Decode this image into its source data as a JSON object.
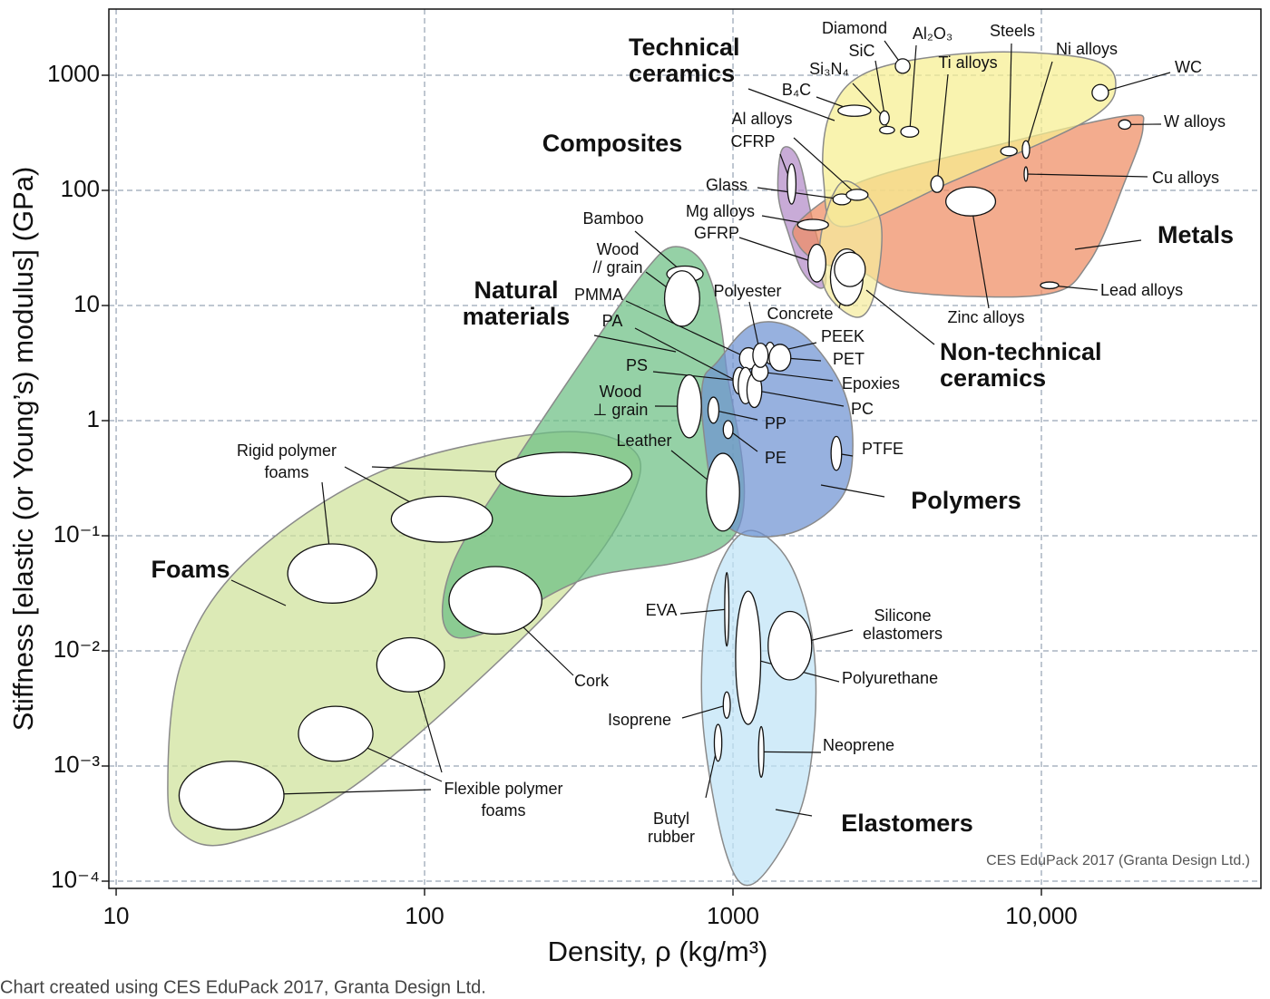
{
  "chart_data": {
    "type": "ashby",
    "x_label": "Density, ρ  (kg/m³)",
    "y_label": "Stiffness [elastic (or Young’s) modulus] (GPa)",
    "log_x": true,
    "log_y": true,
    "grid": true,
    "xlim": [
      9.47,
      51500
    ],
    "ylim": [
      8.65e-05,
      3757
    ],
    "xticks": [
      10,
      100,
      1000,
      {
        "value": 10000,
        "label": "10,000"
      }
    ],
    "yticks": [
      1000,
      100,
      10,
      1,
      {
        "value": 0.1,
        "label": "10⁻¹"
      },
      {
        "value": 0.01,
        "label": "10⁻²"
      },
      {
        "value": 0.001,
        "label": "10⁻³"
      },
      {
        "value": 0.0001,
        "label": "10⁻⁴"
      }
    ],
    "credit": "CES EduPack 2017 (Granta Design Ltd.)",
    "families": [
      {
        "name": [
          "Foams"
        ],
        "color": "#cfe29a",
        "density": [
          14.7,
          16.3,
          24.4,
          63,
          280,
          481,
          450,
          244,
          72,
          26.2,
          16.3
        ],
        "modulus": [
          0.00064,
          0.00026,
          0.00022,
          0.00076,
          0.029,
          0.25,
          0.62,
          0.78,
          0.36,
          0.059,
          0.008
        ]
      },
      {
        "name": [
          "Natural",
          "materials"
        ],
        "color": "#6cbf84",
        "density": [
          116,
          152,
          321,
          1014,
          947,
          828,
          653,
          515,
          321,
          187,
          124
        ],
        "modulus": [
          0.0166,
          0.0139,
          0.0411,
          0.102,
          3.19,
          19.5,
          32.5,
          19.5,
          3.19,
          0.362,
          0.059
        ]
      },
      {
        "name": [
          "Elastomers"
        ],
        "color": "#bfe3f7",
        "density": [
          1161,
          1521,
          1803,
          1841,
          1629,
          1161,
          947,
          800,
          816,
          947
        ],
        "modulus": [
          0.111,
          0.059,
          0.0139,
          0.00226,
          0.00037,
          9.47e-05,
          0.000179,
          0.00226,
          0.0199,
          0.0709
        ]
      },
      {
        "name": [
          "Polymers"
        ],
        "color": "#6f93d2",
        "density": [
          885,
          1161,
          1629,
          2208,
          2443,
          2285,
          1629,
          1084,
          885,
          800,
          800
        ],
        "modulus": [
          3.19,
          6.83,
          6.02,
          2.22,
          0.748,
          0.23,
          0.111,
          0.102,
          0.175,
          0.897,
          2.22
        ]
      },
      {
        "name": [
          "Composites"
        ],
        "color": "#b38bc7",
        "density": [
          1442,
          1629,
          1803,
          1995,
          1928,
          1683,
          1521,
          1402
        ],
        "modulus": [
          226,
          189,
          58,
          19.5,
          14.1,
          19.5,
          40.4,
          91.4
        ]
      },
      {
        "name": [
          "Metals"
        ],
        "color": "#ee8c62",
        "density": [
          1629,
          2620,
          7230,
          18660,
          21350,
          18660,
          14220,
          10140,
          3670,
          2620,
          1928,
          1629
        ],
        "modulus": [
          53,
          120,
          248,
          442,
          356,
          120,
          23.4,
          12.4,
          13.1,
          19.5,
          23.4,
          33.7
        ]
      },
      {
        "name": [
          "Technical",
          "ceramics"
        ],
        "color": "#f7ef90",
        "density": [
          2066,
          2799,
          6310,
          14220,
          17420,
          14220,
          5150,
          2285,
          1968
        ],
        "modulus": [
          467,
          1094,
          1574,
          1387,
          849,
          411,
          120,
          48.4,
          120
        ]
      },
      {
        "name": [
          "Non-technical",
          "ceramics"
        ],
        "color": "#f5ec9c",
        "density": [
          2285,
          2993,
          2895,
          2531,
          1995,
          1928
        ],
        "modulus": [
          120,
          58,
          13.6,
          7.9,
          13.6,
          40.4
        ]
      }
    ],
    "annotations": [
      [
        "Rigid polymer",
        "foams"
      ],
      [
        "Flexible polymer",
        "foams"
      ]
    ],
    "materials": [
      {
        "density": [
          16,
          35
        ],
        "modulus": [
          0.00028,
          0.0011
        ]
      },
      {
        "density": [
          39,
          68
        ],
        "modulus": [
          0.0011,
          0.0033
        ]
      },
      {
        "density": [
          70,
          116
        ],
        "modulus": [
          0.0044,
          0.013
        ]
      },
      {
        "density": [
          36,
          70
        ],
        "modulus": [
          0.026,
          0.085
        ]
      },
      {
        "density": [
          78,
          166
        ],
        "modulus": [
          0.088,
          0.22
        ]
      },
      {
        "density": [
          170,
          470
        ],
        "modulus": [
          0.22,
          0.53
        ]
      },
      {
        "name": [
          "Cork"
        ],
        "density": [
          120,
          240
        ],
        "modulus": [
          0.014,
          0.054
        ]
      },
      {
        "name": [
          "Bamboo"
        ],
        "density": [
          610,
          800
        ],
        "modulus": [
          16,
          22
        ]
      },
      {
        "name": [
          "Wood",
          "// grain"
        ],
        "density": [
          600,
          780
        ],
        "modulus": [
          6.6,
          20
        ]
      },
      {
        "name": [
          "Wood",
          "⊥ grain"
        ],
        "density": [
          660,
          790
        ],
        "modulus": [
          0.71,
          2.5
        ]
      },
      {
        "name": [
          "Leather"
        ],
        "density": [
          820,
          1050
        ],
        "modulus": [
          0.11,
          0.52
        ]
      },
      {
        "name": [
          "PTFE"
        ],
        "density": [
          2080,
          2250
        ],
        "modulus": [
          0.37,
          0.73
        ]
      },
      {
        "name": [
          "PP"
        ],
        "density": [
          830,
          900
        ],
        "modulus": [
          0.95,
          1.6
        ]
      },
      {
        "name": [
          "PE"
        ],
        "density": [
          930,
          1000
        ],
        "modulus": [
          0.7,
          1.0
        ]
      },
      {
        "name": [
          "PS"
        ],
        "density": [
          1000,
          1100
        ],
        "modulus": [
          1.7,
          2.9
        ]
      },
      {
        "name": [
          "PMMA"
        ],
        "density": [
          1050,
          1200
        ],
        "modulus": [
          2.8,
          4.3
        ]
      },
      {
        "name": [
          "PA"
        ],
        "density": [
          1040,
          1160
        ],
        "modulus": [
          1.4,
          2.9
        ]
      },
      {
        "name": [
          "PC"
        ],
        "density": [
          1110,
          1240
        ],
        "modulus": [
          1.3,
          2.6
        ]
      },
      {
        "name": [
          "Epoxies"
        ],
        "density": [
          1150,
          1300
        ],
        "modulus": [
          2.2,
          3.2
        ]
      },
      {
        "name": [
          "PEEK"
        ],
        "density": [
          1270,
          1370
        ],
        "modulus": [
          3.1,
          4.8
        ]
      },
      {
        "name": [
          "PET"
        ],
        "density": [
          1310,
          1540
        ],
        "modulus": [
          2.7,
          4.6
        ]
      },
      {
        "name": [
          "Polyester"
        ],
        "density": [
          1160,
          1300
        ],
        "modulus": [
          2.9,
          4.7
        ]
      },
      {
        "name": [
          "EVA"
        ],
        "density": [
          940,
          970
        ],
        "modulus": [
          0.011,
          0.048
        ]
      },
      {
        "name": [
          "Silicone",
          "elastomers"
        ],
        "density": [
          1300,
          1800
        ],
        "modulus": [
          0.0056,
          0.022
        ]
      },
      {
        "name": [
          "Polyurethane"
        ],
        "density": [
          1020,
          1230
        ],
        "modulus": [
          0.0023,
          0.033
        ]
      },
      {
        "name": [
          "Isoprene"
        ],
        "density": [
          930,
          980
        ],
        "modulus": [
          0.0026,
          0.0044
        ]
      },
      {
        "name": [
          "Butyl",
          "rubber"
        ],
        "density": [
          870,
          920
        ],
        "modulus": [
          0.0011,
          0.0023
        ]
      },
      {
        "name": [
          "Neoprene"
        ],
        "density": [
          1210,
          1260
        ],
        "modulus": [
          0.0008,
          0.0022
        ]
      },
      {
        "name": [
          "CFRP"
        ],
        "density": [
          1500,
          1600
        ],
        "modulus": [
          76,
          170
        ]
      },
      {
        "name": [
          "GFRP"
        ],
        "density": [
          1750,
          2000
        ],
        "modulus": [
          16,
          34
        ]
      },
      {
        "name": [
          "Concrete"
        ],
        "density": [
          2070,
          2640
        ],
        "modulus": [
          10,
          31
        ]
      },
      {
        "density": [
          2133,
          2685
        ],
        "modulus": [
          14.6,
          29
        ]
      },
      {
        "name": [
          "Glass"
        ],
        "density": [
          2110,
          2410
        ],
        "modulus": [
          75,
          93
        ]
      },
      {
        "name": [
          "Al alloys"
        ],
        "density": [
          2330,
          2740
        ],
        "modulus": [
          82,
          102
        ]
      },
      {
        "name": [
          "Mg alloys"
        ],
        "density": [
          1620,
          2040
        ],
        "modulus": [
          45,
          56
        ]
      },
      {
        "name": [
          "B₄C"
        ],
        "density": [
          2190,
          2800
        ],
        "modulus": [
          440,
          550
        ]
      },
      {
        "name": [
          "Si₃N₄"
        ],
        "density": [
          2990,
          3210
        ],
        "modulus": [
          370,
          490
        ]
      },
      {
        "name": [
          "SiC"
        ],
        "density": [
          2990,
          3340
        ],
        "modulus": [
          310,
          360
        ]
      },
      {
        "name": [
          "Al₂O₃"
        ],
        "density": [
          3500,
          4000
        ],
        "modulus": [
          290,
          360
        ]
      },
      {
        "name": [
          "Diamond"
        ],
        "density": [
          3360,
          3750
        ],
        "modulus": [
          1040,
          1390
        ]
      },
      {
        "name": [
          "Ti alloys"
        ],
        "density": [
          4380,
          4810
        ],
        "modulus": [
          96,
          134
        ]
      },
      {
        "name": [
          "Zinc alloys"
        ],
        "density": [
          4900,
          7100
        ],
        "modulus": [
          60,
          107
        ]
      },
      {
        "name": [
          "Steels"
        ],
        "density": [
          7380,
          8340
        ],
        "modulus": [
          200,
          240
        ]
      },
      {
        "name": [
          "Ni alloys"
        ],
        "density": [
          8670,
          9160
        ],
        "modulus": [
          190,
          270
        ]
      },
      {
        "name": [
          "Cu alloys"
        ],
        "density": [
          8790,
          9030
        ],
        "modulus": [
          120,
          160
        ]
      },
      {
        "name": [
          "WC"
        ],
        "density": [
          14600,
          16500
        ],
        "modulus": [
          600,
          830
        ]
      },
      {
        "name": [
          "W alloys"
        ],
        "density": [
          17800,
          19500
        ],
        "modulus": [
          340,
          410
        ]
      },
      {
        "name": [
          "Lead alloys"
        ],
        "density": [
          9930,
          11370
        ],
        "modulus": [
          14,
          16
        ]
      }
    ]
  },
  "caption": "Chart created using CES EduPack 2017, Granta Design Ltd."
}
